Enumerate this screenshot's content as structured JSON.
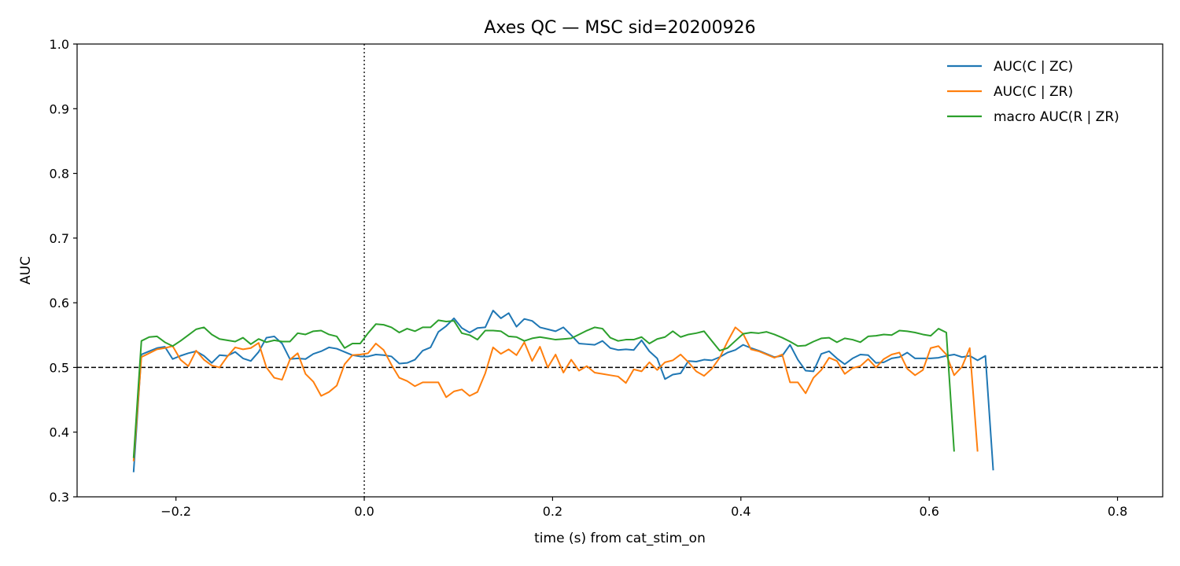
{
  "chart_data": {
    "type": "line",
    "title": "Axes QC — MSC  sid=20200926",
    "xlabel": "time (s) from cat_stim_on",
    "ylabel": "AUC",
    "xlim": [
      -0.305,
      0.848
    ],
    "ylim": [
      0.3,
      1.0
    ],
    "xticks": [
      -0.2,
      0.0,
      0.2,
      0.4,
      0.6,
      0.8
    ],
    "xtick_labels": [
      "−0.2",
      "0.0",
      "0.2",
      "0.4",
      "0.6",
      "0.8"
    ],
    "yticks": [
      0.3,
      0.4,
      0.5,
      0.6,
      0.7,
      0.8,
      0.9,
      1.0
    ],
    "ytick_labels": [
      "0.3",
      "0.4",
      "0.5",
      "0.6",
      "0.7",
      "0.8",
      "0.9",
      "1.0"
    ],
    "grid": false,
    "legend_position": "top-right",
    "reference_lines": [
      {
        "orientation": "horizontal",
        "value": 0.5,
        "style": "dashed",
        "color": "#000000"
      },
      {
        "orientation": "vertical",
        "value": 0.0,
        "style": "dotted",
        "color": "#000000"
      }
    ],
    "x_start": -0.245,
    "x_step": 0.0083,
    "series": [
      {
        "name": "AUC(C | ZC)",
        "color": "#1f77b4",
        "values": [
          0.338,
          0.52,
          0.525,
          0.53,
          0.532,
          0.513,
          0.518,
          0.522,
          0.525,
          0.518,
          0.507,
          0.519,
          0.518,
          0.524,
          0.514,
          0.51,
          0.524,
          0.546,
          0.548,
          0.537,
          0.513,
          0.514,
          0.513,
          0.521,
          0.525,
          0.531,
          0.529,
          0.524,
          0.519,
          0.517,
          0.517,
          0.52,
          0.519,
          0.517,
          0.506,
          0.507,
          0.512,
          0.526,
          0.531,
          0.555,
          0.564,
          0.576,
          0.561,
          0.554,
          0.561,
          0.562,
          0.588,
          0.576,
          0.584,
          0.563,
          0.575,
          0.572,
          0.562,
          0.559,
          0.556,
          0.562,
          0.55,
          0.537,
          0.536,
          0.535,
          0.541,
          0.53,
          0.527,
          0.528,
          0.527,
          0.542,
          0.525,
          0.514,
          0.482,
          0.489,
          0.491,
          0.51,
          0.509,
          0.512,
          0.511,
          0.516,
          0.523,
          0.527,
          0.535,
          0.53,
          0.526,
          0.521,
          0.516,
          0.518,
          0.535,
          0.512,
          0.495,
          0.494,
          0.521,
          0.525,
          0.514,
          0.505,
          0.514,
          0.52,
          0.519,
          0.507,
          0.508,
          0.514,
          0.516,
          0.523,
          0.514,
          0.514,
          0.514,
          0.515,
          0.518,
          0.52,
          0.516,
          0.518,
          0.511,
          0.518,
          0.341
        ]
      },
      {
        "name": "AUC(C | ZR)",
        "color": "#ff7f0e",
        "values": [
          0.355,
          0.516,
          0.522,
          0.528,
          0.53,
          0.533,
          0.512,
          0.502,
          0.526,
          0.512,
          0.503,
          0.5,
          0.517,
          0.531,
          0.528,
          0.53,
          0.538,
          0.5,
          0.484,
          0.481,
          0.512,
          0.522,
          0.49,
          0.478,
          0.456,
          0.462,
          0.472,
          0.505,
          0.519,
          0.52,
          0.522,
          0.537,
          0.527,
          0.504,
          0.484,
          0.479,
          0.471,
          0.477,
          0.477,
          0.477,
          0.454,
          0.463,
          0.466,
          0.456,
          0.462,
          0.491,
          0.531,
          0.521,
          0.528,
          0.519,
          0.539,
          0.51,
          0.532,
          0.5,
          0.52,
          0.492,
          0.512,
          0.495,
          0.502,
          0.492,
          0.49,
          0.488,
          0.486,
          0.476,
          0.497,
          0.494,
          0.508,
          0.496,
          0.508,
          0.511,
          0.52,
          0.508,
          0.494,
          0.487,
          0.498,
          0.515,
          0.54,
          0.562,
          0.552,
          0.528,
          0.525,
          0.52,
          0.515,
          0.52,
          0.477,
          0.477,
          0.46,
          0.484,
          0.496,
          0.515,
          0.51,
          0.49,
          0.499,
          0.502,
          0.513,
          0.5,
          0.513,
          0.52,
          0.523,
          0.498,
          0.488,
          0.496,
          0.53,
          0.533,
          0.52,
          0.488,
          0.501,
          0.53,
          0.37
        ]
      },
      {
        "name": "macro AUC(R | ZR)",
        "color": "#2ca02c",
        "values": [
          0.36,
          0.541,
          0.547,
          0.548,
          0.539,
          0.533,
          0.541,
          0.55,
          0.559,
          0.562,
          0.551,
          0.544,
          0.542,
          0.54,
          0.546,
          0.536,
          0.544,
          0.539,
          0.542,
          0.54,
          0.54,
          0.553,
          0.551,
          0.556,
          0.557,
          0.551,
          0.548,
          0.53,
          0.537,
          0.537,
          0.553,
          0.567,
          0.566,
          0.562,
          0.554,
          0.56,
          0.556,
          0.562,
          0.562,
          0.573,
          0.571,
          0.572,
          0.553,
          0.55,
          0.543,
          0.557,
          0.557,
          0.556,
          0.548,
          0.547,
          0.541,
          0.545,
          0.547,
          0.545,
          0.543,
          0.544,
          0.545,
          0.551,
          0.557,
          0.562,
          0.56,
          0.546,
          0.541,
          0.543,
          0.543,
          0.547,
          0.537,
          0.544,
          0.547,
          0.556,
          0.547,
          0.551,
          0.553,
          0.556,
          0.541,
          0.526,
          0.53,
          0.541,
          0.552,
          0.554,
          0.553,
          0.555,
          0.551,
          0.546,
          0.54,
          0.533,
          0.534,
          0.54,
          0.545,
          0.546,
          0.539,
          0.545,
          0.543,
          0.539,
          0.548,
          0.549,
          0.551,
          0.55,
          0.557,
          0.556,
          0.554,
          0.551,
          0.549,
          0.56,
          0.554,
          0.37
        ]
      }
    ]
  }
}
